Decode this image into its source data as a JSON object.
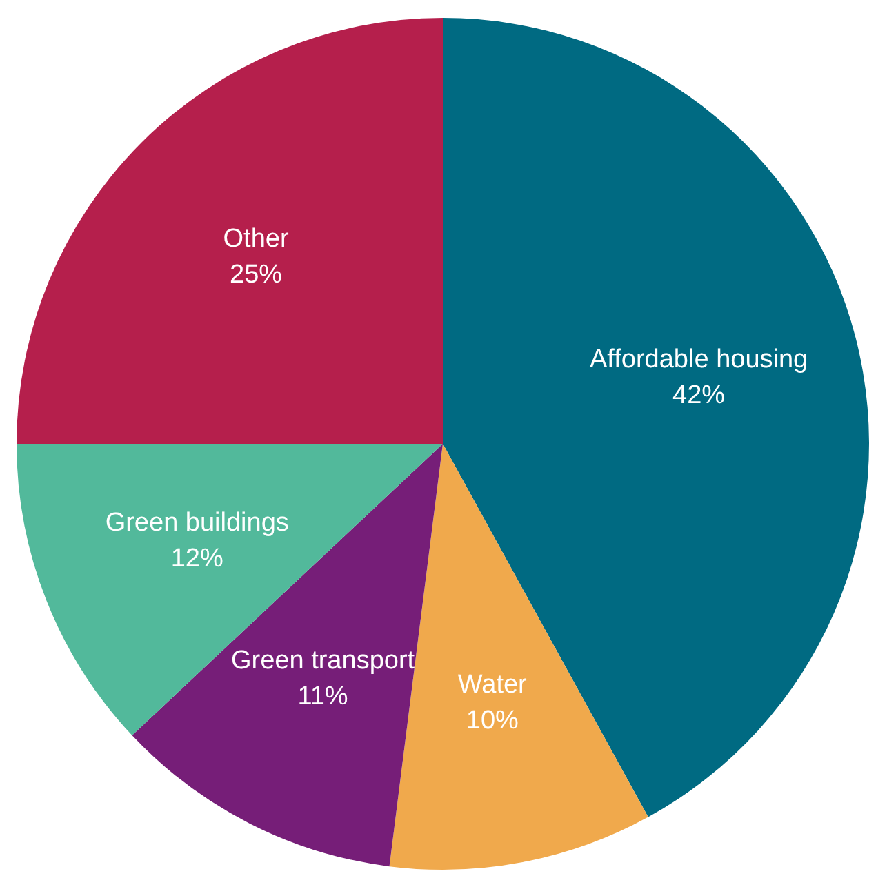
{
  "chart_data": {
    "type": "pie",
    "categories": [
      "Affordable housing",
      "Water",
      "Green transport",
      "Green buildings",
      "Other"
    ],
    "values": [
      42,
      10,
      11,
      12,
      25
    ],
    "value_labels": [
      "42%",
      "10%",
      "11%",
      "12%",
      "25%"
    ],
    "colors": [
      "#006a82",
      "#f0a94c",
      "#761e78",
      "#52b99b",
      "#b51f4c"
    ],
    "legend": false
  }
}
